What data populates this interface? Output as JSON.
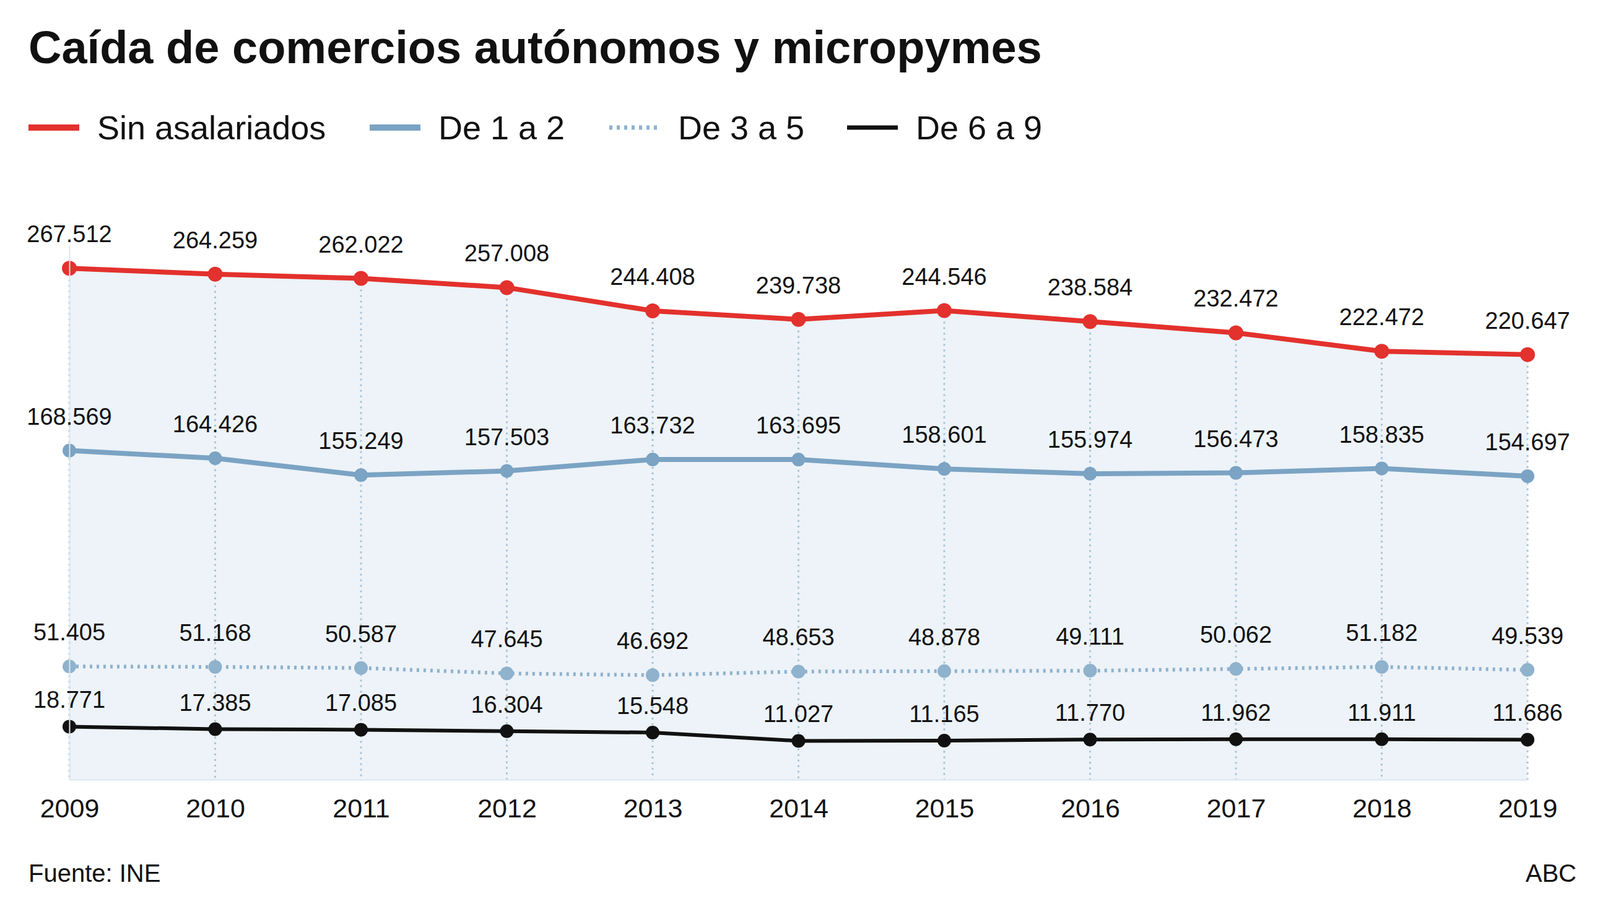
{
  "chart_data": {
    "type": "line",
    "title": "Caída de comercios autónomos y micropymes",
    "source": "Fuente: INE",
    "credit": "ABC",
    "categories": [
      "2009",
      "2010",
      "2011",
      "2012",
      "2013",
      "2014",
      "2015",
      "2016",
      "2017",
      "2018",
      "2019"
    ],
    "ylim": [
      -10000,
      280000
    ],
    "yticks": [],
    "tick_labels": "x",
    "grid": true,
    "data_labels": true,
    "series": [
      {
        "name": "Sin asalariados",
        "color": "#e3312d",
        "marker": "circle",
        "line_style": "solid",
        "values": [
          267512,
          264259,
          262022,
          257008,
          244408,
          239738,
          244546,
          238584,
          232472,
          222472,
          220647
        ],
        "value_labels": [
          "267.512",
          "264.259",
          "262.022",
          "257.008",
          "244.408",
          "239.738",
          "244.546",
          "238.584",
          "232.472",
          "222.472",
          "220.647"
        ]
      },
      {
        "name": "De 1 a 2",
        "color": "#7ba3c3",
        "marker": "circle",
        "line_style": "solid",
        "values": [
          168569,
          164426,
          155249,
          157503,
          163732,
          163695,
          158601,
          155974,
          156473,
          158835,
          154697
        ],
        "value_labels": [
          "168.569",
          "164.426",
          "155.249",
          "157.503",
          "163.732",
          "163.695",
          "158.601",
          "155.974",
          "156.473",
          "158.835",
          "154.697"
        ]
      },
      {
        "name": "De 3 a 5",
        "color": "#8fb2cd",
        "marker": "circle",
        "line_style": "dotted",
        "values": [
          51405,
          51168,
          50587,
          47645,
          46692,
          48653,
          48878,
          49111,
          50062,
          51182,
          49539
        ],
        "value_labels": [
          "51.405",
          "51.168",
          "50.587",
          "47.645",
          "46.692",
          "48.653",
          "48.878",
          "49.111",
          "50.062",
          "51.182",
          "49.539"
        ]
      },
      {
        "name": "De 6 a 9",
        "color": "#111111",
        "marker": "circle",
        "line_style": "solid",
        "values": [
          18771,
          17385,
          17085,
          16304,
          15548,
          11027,
          11165,
          11770,
          11962,
          11911,
          11686
        ],
        "value_labels": [
          "18.771",
          "17.385",
          "17.085",
          "16.304",
          "15.548",
          "11.027",
          "11.165",
          "11.770",
          "11.962",
          "11.911",
          "11.686"
        ]
      }
    ]
  }
}
